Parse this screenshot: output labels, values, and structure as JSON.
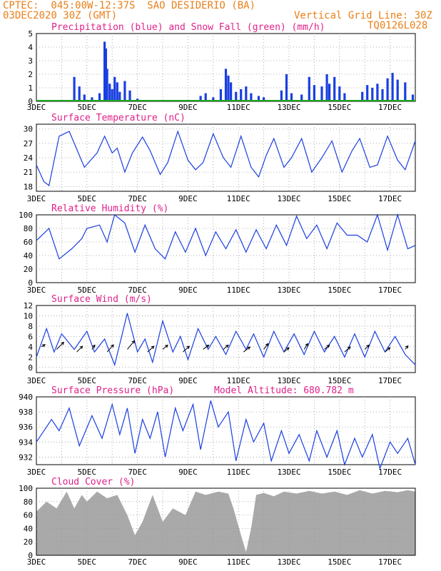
{
  "header": {
    "line1": "CPTEC:  045:00W-12:37S  SAO DESIDERIO (BA)",
    "line2_left": "03DEC2020 30Z (GMT)",
    "line2_right": "Vertical Grid Line: 30Z",
    "model_code": "TQ0126L028"
  },
  "colors": {
    "header": "#e8801a",
    "title": "#e0208a",
    "line": "#1a3fe0",
    "bar": "#1a3fe0",
    "snow": "#1aa81a",
    "cloud": "#a9a9a9",
    "grid": "#999999"
  },
  "chart_data": [
    {
      "id": "precip",
      "type": "bar",
      "title": "Precipitation (blue) and Snow Fall (green) (mm/h)",
      "ylim": [
        0,
        5
      ],
      "yticks": [
        0,
        1,
        2,
        3,
        4,
        5
      ],
      "x_dates": [
        "3DEC",
        "5DEC",
        "7DEC",
        "9DEC",
        "11DEC",
        "13DEC",
        "15DEC",
        "17DEC"
      ],
      "x_start_day": 3,
      "x_end_day": 18,
      "grid": true,
      "bars": [
        [
          4.5,
          1.8
        ],
        [
          4.7,
          1.1
        ],
        [
          4.9,
          0.5
        ],
        [
          5.2,
          0.3
        ],
        [
          5.5,
          0.6
        ],
        [
          5.7,
          4.4
        ],
        [
          5.75,
          3.9
        ],
        [
          5.8,
          2.4
        ],
        [
          5.9,
          1.3
        ],
        [
          6.0,
          0.9
        ],
        [
          6.1,
          1.8
        ],
        [
          6.2,
          1.4
        ],
        [
          6.3,
          0.7
        ],
        [
          6.5,
          1.5
        ],
        [
          6.7,
          0.8
        ],
        [
          7.0,
          0.2
        ],
        [
          9.5,
          0.4
        ],
        [
          9.7,
          0.6
        ],
        [
          10.0,
          0.3
        ],
        [
          10.3,
          0.9
        ],
        [
          10.5,
          2.4
        ],
        [
          10.6,
          1.9
        ],
        [
          10.7,
          1.4
        ],
        [
          10.9,
          0.7
        ],
        [
          11.1,
          0.9
        ],
        [
          11.3,
          1.1
        ],
        [
          11.5,
          0.6
        ],
        [
          11.8,
          0.4
        ],
        [
          12.0,
          0.3
        ],
        [
          12.7,
          0.8
        ],
        [
          12.9,
          2.0
        ],
        [
          13.1,
          0.6
        ],
        [
          13.5,
          0.5
        ],
        [
          13.8,
          1.8
        ],
        [
          14.0,
          1.2
        ],
        [
          14.3,
          1.1
        ],
        [
          14.5,
          2.0
        ],
        [
          14.6,
          1.3
        ],
        [
          14.8,
          1.8
        ],
        [
          15.0,
          1.1
        ],
        [
          15.2,
          0.6
        ],
        [
          15.9,
          0.7
        ],
        [
          16.1,
          1.2
        ],
        [
          16.3,
          1.0
        ],
        [
          16.5,
          1.3
        ],
        [
          16.7,
          0.9
        ],
        [
          16.9,
          1.7
        ],
        [
          17.1,
          2.1
        ],
        [
          17.3,
          1.6
        ],
        [
          17.6,
          1.4
        ],
        [
          17.9,
          0.5
        ]
      ],
      "snow": 0
    },
    {
      "id": "temperature",
      "type": "line",
      "title": "Surface Temperature (nC)",
      "ylim": [
        17,
        31
      ],
      "yticks": [
        18,
        21,
        24,
        27,
        30
      ],
      "x_dates": [
        "3DEC",
        "5DEC",
        "7DEC",
        "9DEC",
        "11DEC",
        "13DEC",
        "15DEC",
        "17DEC"
      ],
      "x_start_day": 3,
      "x_end_day": 18,
      "grid": true,
      "points": [
        [
          3.0,
          22.5
        ],
        [
          3.3,
          19.0
        ],
        [
          3.5,
          18.2
        ],
        [
          3.9,
          28.5
        ],
        [
          4.3,
          29.5
        ],
        [
          4.9,
          22.0
        ],
        [
          5.4,
          25.0
        ],
        [
          5.7,
          28.5
        ],
        [
          6.0,
          25.0
        ],
        [
          6.2,
          26.0
        ],
        [
          6.5,
          21.0
        ],
        [
          6.8,
          25.0
        ],
        [
          7.2,
          28.3
        ],
        [
          7.5,
          25.5
        ],
        [
          7.9,
          20.5
        ],
        [
          8.2,
          23.0
        ],
        [
          8.6,
          29.5
        ],
        [
          9.0,
          23.5
        ],
        [
          9.3,
          21.5
        ],
        [
          9.6,
          23.0
        ],
        [
          10.0,
          29.0
        ],
        [
          10.4,
          24.0
        ],
        [
          10.7,
          22.0
        ],
        [
          11.1,
          28.5
        ],
        [
          11.5,
          22.0
        ],
        [
          11.8,
          20.0
        ],
        [
          12.1,
          24.5
        ],
        [
          12.4,
          28.0
        ],
        [
          12.8,
          22.0
        ],
        [
          13.1,
          24.0
        ],
        [
          13.5,
          28.0
        ],
        [
          13.9,
          21.0
        ],
        [
          14.3,
          24.0
        ],
        [
          14.7,
          27.5
        ],
        [
          15.1,
          21.0
        ],
        [
          15.5,
          25.5
        ],
        [
          15.8,
          28.0
        ],
        [
          16.2,
          22.0
        ],
        [
          16.5,
          22.5
        ],
        [
          16.9,
          28.5
        ],
        [
          17.3,
          23.5
        ],
        [
          17.6,
          21.5
        ],
        [
          18.0,
          27.5
        ]
      ]
    },
    {
      "id": "humidity",
      "type": "line",
      "title": "Relative Humidity (%)",
      "ylim": [
        0,
        100
      ],
      "yticks": [
        0,
        20,
        40,
        60,
        80,
        100
      ],
      "x_dates": [
        "3DEC",
        "5DEC",
        "7DEC",
        "9DEC",
        "11DEC",
        "13DEC",
        "15DEC",
        "17DEC"
      ],
      "x_start_day": 3,
      "x_end_day": 18,
      "grid": true,
      "points": [
        [
          3.0,
          62.0
        ],
        [
          3.5,
          80.0
        ],
        [
          3.9,
          35.0
        ],
        [
          4.4,
          50.0
        ],
        [
          4.8,
          65.0
        ],
        [
          5.0,
          80.0
        ],
        [
          5.5,
          85.0
        ],
        [
          5.8,
          60.0
        ],
        [
          6.1,
          100.0
        ],
        [
          6.5,
          88.0
        ],
        [
          6.9,
          45.0
        ],
        [
          7.3,
          85.0
        ],
        [
          7.7,
          50.0
        ],
        [
          8.1,
          35.0
        ],
        [
          8.5,
          75.0
        ],
        [
          8.9,
          45.0
        ],
        [
          9.3,
          80.0
        ],
        [
          9.7,
          40.0
        ],
        [
          10.1,
          75.0
        ],
        [
          10.5,
          50.0
        ],
        [
          10.9,
          78.0
        ],
        [
          11.3,
          45.0
        ],
        [
          11.7,
          78.0
        ],
        [
          12.1,
          50.0
        ],
        [
          12.5,
          85.0
        ],
        [
          12.9,
          55.0
        ],
        [
          13.3,
          98.0
        ],
        [
          13.7,
          65.0
        ],
        [
          14.1,
          85.0
        ],
        [
          14.5,
          50.0
        ],
        [
          14.9,
          88.0
        ],
        [
          15.3,
          70.0
        ],
        [
          15.7,
          70.0
        ],
        [
          16.1,
          60.0
        ],
        [
          16.5,
          100.0
        ],
        [
          16.9,
          48.0
        ],
        [
          17.3,
          100.0
        ],
        [
          17.7,
          50.0
        ],
        [
          18.0,
          55.0
        ]
      ]
    },
    {
      "id": "wind",
      "type": "line",
      "title": "Surface Wind (m/s)",
      "ylim": [
        -1,
        12
      ],
      "yticks": [
        0,
        2,
        4,
        6,
        8,
        10,
        12
      ],
      "x_dates": [
        "3DEC",
        "5DEC",
        "7DEC",
        "9DEC",
        "11DEC",
        "13DEC",
        "15DEC",
        "17DEC"
      ],
      "x_start_day": 3,
      "x_end_day": 18,
      "grid": true,
      "points": [
        [
          3.0,
          2.0
        ],
        [
          3.4,
          7.5
        ],
        [
          3.7,
          3.0
        ],
        [
          4.0,
          6.5
        ],
        [
          4.5,
          3.5
        ],
        [
          5.0,
          7.0
        ],
        [
          5.3,
          3.0
        ],
        [
          5.7,
          5.5
        ],
        [
          6.1,
          0.5
        ],
        [
          6.6,
          10.5
        ],
        [
          7.0,
          3.0
        ],
        [
          7.3,
          5.5
        ],
        [
          7.6,
          1.0
        ],
        [
          8.0,
          9.0
        ],
        [
          8.4,
          3.0
        ],
        [
          8.7,
          6.0
        ],
        [
          9.0,
          1.5
        ],
        [
          9.4,
          7.5
        ],
        [
          9.8,
          3.5
        ],
        [
          10.1,
          6.0
        ],
        [
          10.5,
          2.5
        ],
        [
          10.9,
          7.0
        ],
        [
          11.3,
          3.5
        ],
        [
          11.6,
          6.5
        ],
        [
          12.0,
          2.0
        ],
        [
          12.4,
          7.0
        ],
        [
          12.8,
          3.0
        ],
        [
          13.2,
          6.5
        ],
        [
          13.6,
          2.5
        ],
        [
          14.0,
          7.0
        ],
        [
          14.4,
          3.0
        ],
        [
          14.8,
          6.0
        ],
        [
          15.2,
          2.0
        ],
        [
          15.6,
          6.5
        ],
        [
          16.0,
          2.0
        ],
        [
          16.4,
          7.0
        ],
        [
          16.8,
          3.0
        ],
        [
          17.2,
          6.0
        ],
        [
          17.6,
          2.5
        ],
        [
          18.0,
          0.5
        ]
      ],
      "arrows": [
        [
          3.2,
          4.0,
          5,
          -3
        ],
        [
          3.8,
          3.5,
          10,
          -10
        ],
        [
          4.6,
          3.0,
          8,
          -8
        ],
        [
          5.2,
          3.5,
          4,
          -6
        ],
        [
          5.8,
          3.0,
          9,
          -10
        ],
        [
          6.6,
          3.5,
          10,
          -12
        ],
        [
          7.4,
          3.0,
          9,
          -8
        ],
        [
          8.0,
          3.5,
          7,
          -6
        ],
        [
          8.8,
          3.0,
          9,
          -8
        ],
        [
          9.6,
          3.5,
          8,
          -6
        ],
        [
          10.4,
          3.5,
          7,
          -6
        ],
        [
          11.2,
          3.0,
          9,
          -7
        ],
        [
          12.0,
          3.5,
          6,
          -8
        ],
        [
          12.8,
          3.0,
          7,
          -6
        ],
        [
          13.6,
          3.5,
          5,
          -8
        ],
        [
          14.4,
          3.5,
          7,
          -6
        ],
        [
          15.2,
          3.0,
          8,
          -7
        ],
        [
          16.0,
          3.5,
          6,
          -6
        ],
        [
          16.8,
          3.0,
          7,
          -6
        ],
        [
          17.6,
          3.5,
          4,
          -5
        ]
      ]
    },
    {
      "id": "pressure",
      "type": "line",
      "title": "Surface Pressure (hPa)",
      "subtitle": "Model Altitude: 680.782 m",
      "ylim": [
        931,
        940
      ],
      "yticks": [
        932,
        934,
        936,
        938,
        940
      ],
      "x_dates": [
        "3DEC",
        "5DEC",
        "7DEC",
        "9DEC",
        "11DEC",
        "13DEC",
        "15DEC",
        "17DEC"
      ],
      "x_start_day": 3,
      "x_end_day": 18,
      "grid": true,
      "points": [
        [
          3.0,
          934.0
        ],
        [
          3.6,
          937.0
        ],
        [
          3.9,
          935.5
        ],
        [
          4.3,
          938.5
        ],
        [
          4.7,
          933.5
        ],
        [
          5.2,
          937.5
        ],
        [
          5.6,
          934.5
        ],
        [
          6.0,
          939.0
        ],
        [
          6.3,
          935.0
        ],
        [
          6.6,
          938.5
        ],
        [
          6.9,
          932.5
        ],
        [
          7.2,
          937.0
        ],
        [
          7.5,
          934.5
        ],
        [
          7.8,
          938.0
        ],
        [
          8.1,
          932.0
        ],
        [
          8.5,
          938.5
        ],
        [
          8.8,
          935.5
        ],
        [
          9.2,
          939.0
        ],
        [
          9.5,
          933.0
        ],
        [
          9.9,
          939.5
        ],
        [
          10.2,
          936.0
        ],
        [
          10.6,
          938.0
        ],
        [
          10.9,
          931.5
        ],
        [
          11.3,
          937.0
        ],
        [
          11.6,
          934.0
        ],
        [
          12.0,
          936.5
        ],
        [
          12.3,
          931.5
        ],
        [
          12.7,
          935.5
        ],
        [
          13.0,
          932.5
        ],
        [
          13.4,
          935.0
        ],
        [
          13.8,
          931.5
        ],
        [
          14.1,
          935.5
        ],
        [
          14.5,
          932.0
        ],
        [
          14.9,
          935.5
        ],
        [
          15.2,
          931.0
        ],
        [
          15.6,
          934.5
        ],
        [
          15.9,
          932.0
        ],
        [
          16.3,
          935.0
        ],
        [
          16.6,
          930.5
        ],
        [
          17.0,
          934.0
        ],
        [
          17.3,
          932.5
        ],
        [
          17.7,
          934.5
        ],
        [
          18.0,
          931.0
        ]
      ]
    },
    {
      "id": "cloud",
      "type": "area",
      "title": "Cloud Cover (%)",
      "ylim": [
        0,
        100
      ],
      "yticks": [
        0,
        20,
        40,
        60,
        80,
        100
      ],
      "x_dates": [
        "3DEC",
        "5DEC",
        "7DEC",
        "9DEC",
        "11DEC",
        "13DEC",
        "15DEC",
        "17DEC"
      ],
      "x_start_day": 3,
      "x_end_day": 18,
      "grid": true,
      "points": [
        [
          3.0,
          65.0
        ],
        [
          3.4,
          80.0
        ],
        [
          3.8,
          70.0
        ],
        [
          4.2,
          95.0
        ],
        [
          4.5,
          70.0
        ],
        [
          4.8,
          90.0
        ],
        [
          5.0,
          80.0
        ],
        [
          5.4,
          95.0
        ],
        [
          5.8,
          85.0
        ],
        [
          6.2,
          90.0
        ],
        [
          6.6,
          60.0
        ],
        [
          6.9,
          30.0
        ],
        [
          7.2,
          50.0
        ],
        [
          7.6,
          90.0
        ],
        [
          8.0,
          50.0
        ],
        [
          8.4,
          70.0
        ],
        [
          8.9,
          60.0
        ],
        [
          9.3,
          95.0
        ],
        [
          9.7,
          90.0
        ],
        [
          10.2,
          95.0
        ],
        [
          10.6,
          92.0
        ],
        [
          10.8,
          70.0
        ],
        [
          11.1,
          30.0
        ],
        [
          11.3,
          5.0
        ],
        [
          11.5,
          40.0
        ],
        [
          11.7,
          90.0
        ],
        [
          12.0,
          93.0
        ],
        [
          12.4,
          88.0
        ],
        [
          12.8,
          95.0
        ],
        [
          13.3,
          92.0
        ],
        [
          13.8,
          96.0
        ],
        [
          14.3,
          92.0
        ],
        [
          14.8,
          95.0
        ],
        [
          15.3,
          90.0
        ],
        [
          15.8,
          97.0
        ],
        [
          16.3,
          92.0
        ],
        [
          16.8,
          96.0
        ],
        [
          17.3,
          94.0
        ],
        [
          17.7,
          97.0
        ],
        [
          18.0,
          95.0
        ]
      ]
    }
  ]
}
